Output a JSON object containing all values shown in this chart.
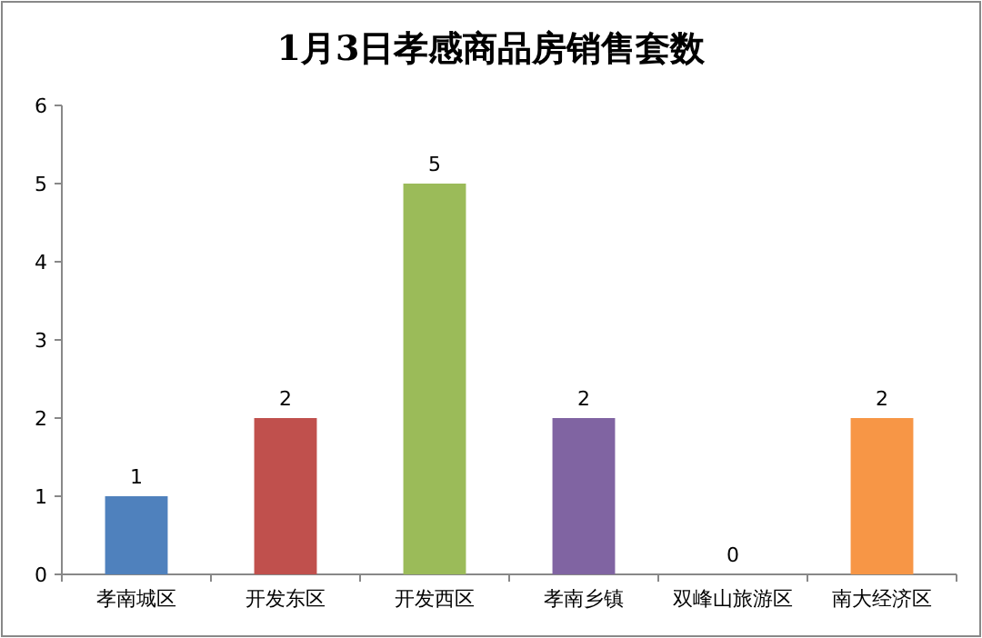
{
  "chart_data": {
    "type": "bar",
    "title": "1月3日孝感商品房销售套数",
    "categories": [
      "孝南城区",
      "开发东区",
      "开发西区",
      "孝南乡镇",
      "双峰山旅游区",
      "南大经济区"
    ],
    "values": [
      1,
      2,
      5,
      2,
      0,
      2
    ],
    "colors": [
      "#4f81bd",
      "#c0504d",
      "#9bbb59",
      "#8064a2",
      "#4bacc6",
      "#f79646"
    ],
    "ylim": [
      0,
      6
    ],
    "yticks": [
      0,
      1,
      2,
      3,
      4,
      5,
      6
    ],
    "data_labels": true
  }
}
